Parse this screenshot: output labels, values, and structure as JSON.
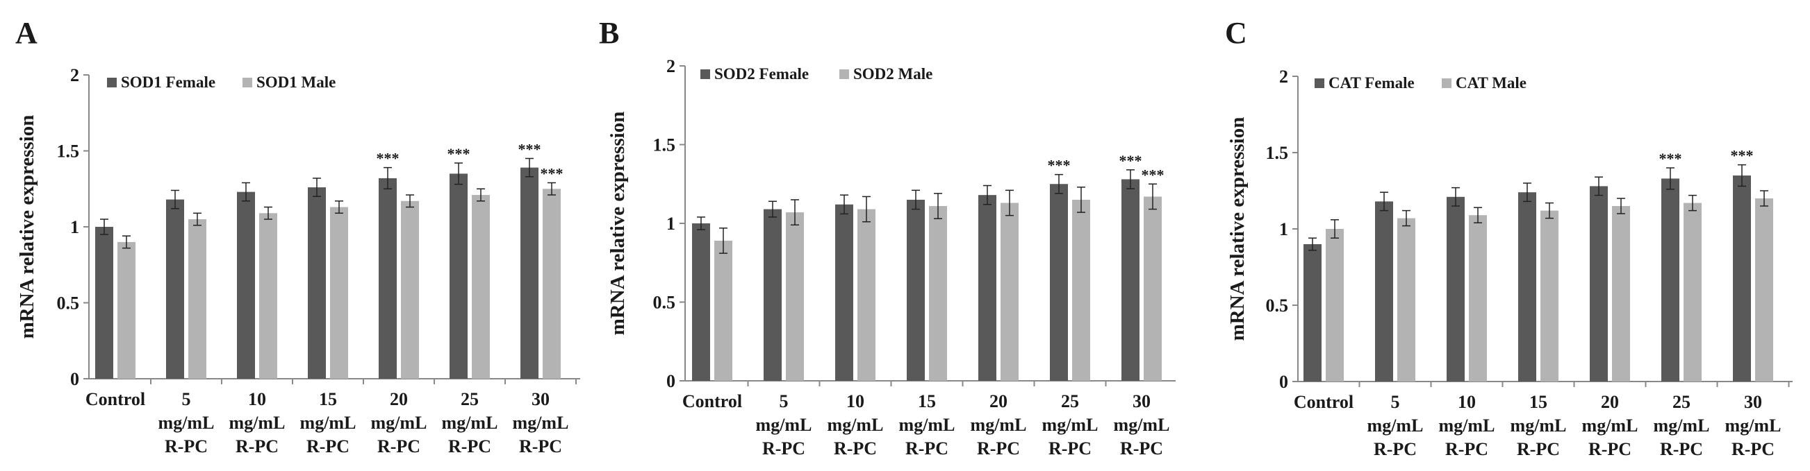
{
  "colors": {
    "female": "#595959",
    "male": "#b3b3b3",
    "axis": "#888888",
    "text": "#1a1a1a"
  },
  "chart_data": [
    {
      "type": "bar",
      "panel": "A",
      "title": "",
      "xlabel": "",
      "ylabel": "mRNA relative expression",
      "ylim": [
        0,
        2
      ],
      "yticks": [
        "0",
        "0.5",
        "1",
        "1.5",
        "2"
      ],
      "categories": [
        [
          "Control"
        ],
        [
          "5",
          "mg/mL",
          "R-PC"
        ],
        [
          "10",
          "mg/mL",
          "R-PC"
        ],
        [
          "15",
          "mg/mL",
          "R-PC"
        ],
        [
          "20",
          "mg/mL",
          "R-PC"
        ],
        [
          "25",
          "mg/mL",
          "R-PC"
        ],
        [
          "30",
          "mg/mL",
          "R-PC"
        ]
      ],
      "series": [
        {
          "name": "SOD1 Female",
          "values": [
            1.0,
            1.18,
            1.23,
            1.26,
            1.32,
            1.35,
            1.39
          ],
          "errors": [
            0.05,
            0.06,
            0.06,
            0.06,
            0.07,
            0.07,
            0.06
          ],
          "significance": [
            "",
            "",
            "",
            "",
            "***",
            "***",
            "***"
          ]
        },
        {
          "name": "SOD1 Male",
          "values": [
            0.9,
            1.05,
            1.09,
            1.13,
            1.17,
            1.21,
            1.25
          ],
          "errors": [
            0.04,
            0.04,
            0.04,
            0.04,
            0.04,
            0.04,
            0.04
          ],
          "significance": [
            "",
            "",
            "",
            "",
            "",
            "",
            "***"
          ]
        }
      ],
      "legend": "top-left"
    },
    {
      "type": "bar",
      "panel": "B",
      "title": "",
      "xlabel": "",
      "ylabel": "mRNA relative expression",
      "ylim": [
        0,
        2
      ],
      "yticks": [
        "0",
        "0.5",
        "1",
        "1.5",
        "2"
      ],
      "categories": [
        [
          "Control"
        ],
        [
          "5",
          "mg/mL",
          "R-PC"
        ],
        [
          "10",
          "mg/mL",
          "R-PC"
        ],
        [
          "15",
          "mg/mL",
          "R-PC"
        ],
        [
          "20",
          "mg/mL",
          "R-PC"
        ],
        [
          "25",
          "mg/mL",
          "R-PC"
        ],
        [
          "30",
          "mg/mL",
          "R-PC"
        ]
      ],
      "series": [
        {
          "name": "SOD2 Female",
          "values": [
            1.0,
            1.09,
            1.12,
            1.15,
            1.18,
            1.25,
            1.28
          ],
          "errors": [
            0.04,
            0.05,
            0.06,
            0.06,
            0.06,
            0.06,
            0.06
          ],
          "significance": [
            "",
            "",
            "",
            "",
            "",
            "***",
            "***"
          ]
        },
        {
          "name": "SOD2 Male",
          "values": [
            0.89,
            1.07,
            1.09,
            1.11,
            1.13,
            1.15,
            1.17
          ],
          "errors": [
            0.08,
            0.08,
            0.08,
            0.08,
            0.08,
            0.08,
            0.08
          ],
          "significance": [
            "",
            "",
            "",
            "",
            "",
            "",
            "***"
          ]
        }
      ],
      "legend": "top-left"
    },
    {
      "type": "bar",
      "panel": "C",
      "title": "",
      "xlabel": "",
      "ylabel": "mRNA relative expression",
      "ylim": [
        0,
        2
      ],
      "yticks": [
        "0",
        "0.5",
        "1",
        "1.5",
        "2"
      ],
      "categories": [
        [
          "Control"
        ],
        [
          "5",
          "mg/mL",
          "R-PC"
        ],
        [
          "10",
          "mg/mL",
          "R-PC"
        ],
        [
          "15",
          "mg/mL",
          "R-PC"
        ],
        [
          "20",
          "mg/mL",
          "R-PC"
        ],
        [
          "25",
          "mg/mL",
          "R-PC"
        ],
        [
          "30",
          "mg/mL",
          "R-PC"
        ]
      ],
      "series": [
        {
          "name": "CAT Female",
          "values": [
            0.9,
            1.18,
            1.21,
            1.24,
            1.28,
            1.33,
            1.35
          ],
          "errors": [
            0.04,
            0.06,
            0.06,
            0.06,
            0.06,
            0.07,
            0.07
          ],
          "significance": [
            "",
            "",
            "",
            "",
            "",
            "***",
            "***"
          ]
        },
        {
          "name": "CAT Male",
          "values": [
            1.0,
            1.07,
            1.09,
            1.12,
            1.15,
            1.17,
            1.2
          ],
          "errors": [
            0.06,
            0.05,
            0.05,
            0.05,
            0.05,
            0.05,
            0.05
          ],
          "significance": [
            "",
            "",
            "",
            "",
            "",
            "",
            ""
          ]
        }
      ],
      "legend": "top-left"
    }
  ]
}
